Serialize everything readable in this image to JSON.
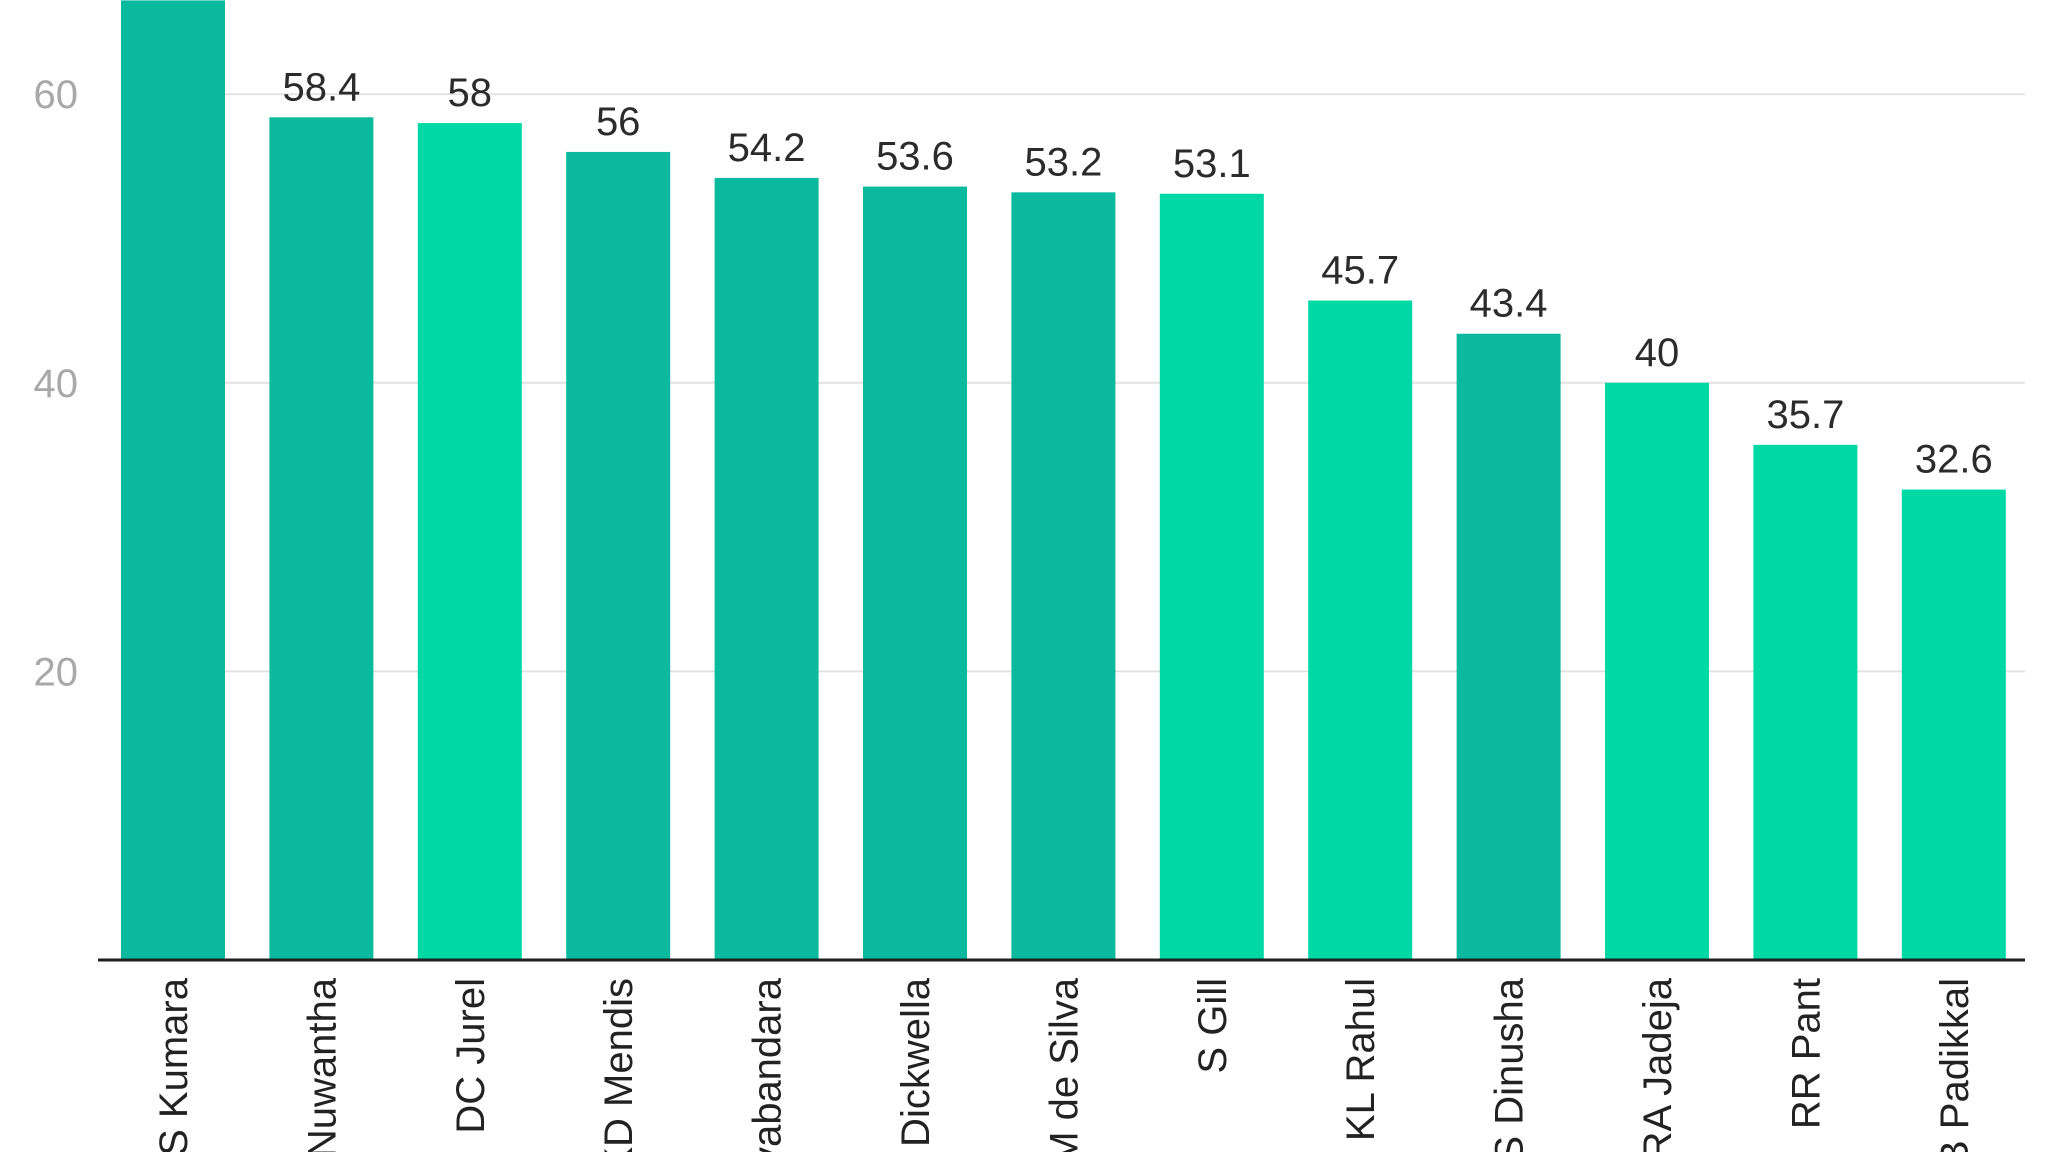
{
  "chart_data": {
    "type": "bar",
    "title": "",
    "xlabel": "",
    "ylabel": "",
    "categories": [
      "LS Kumara",
      "Nuwantha",
      "DC Jurel",
      "KD Mendis",
      "yabandara",
      "Dickwella",
      "M de Silva",
      "S Gill",
      "KL Rahul",
      "S Dinusha",
      "RA Jadeja",
      "RR Pant",
      "B Padikkal"
    ],
    "values": [
      66.5,
      58.4,
      58,
      56,
      54.2,
      53.6,
      53.2,
      53.1,
      45.7,
      43.4,
      40,
      35.7,
      32.6
    ],
    "data_labels": [
      "",
      "58.4",
      "58",
      "56",
      "54.2",
      "53.6",
      "53.2",
      "53.1",
      "45.7",
      "43.4",
      "40",
      "35.7",
      "32.6"
    ],
    "ylim": [
      0,
      66.5
    ],
    "yticks": [
      "20",
      "40",
      "60"
    ],
    "grid": true,
    "colors": [
      "#0bba9e",
      "#0bba9e",
      "#00d9a6",
      "#0bba9e",
      "#0bba9e",
      "#0bba9e",
      "#0bba9e",
      "#00d9a6",
      "#00d9a6",
      "#0bba9e",
      "#00d9a6",
      "#00d9a6",
      "#00d9a6"
    ]
  }
}
